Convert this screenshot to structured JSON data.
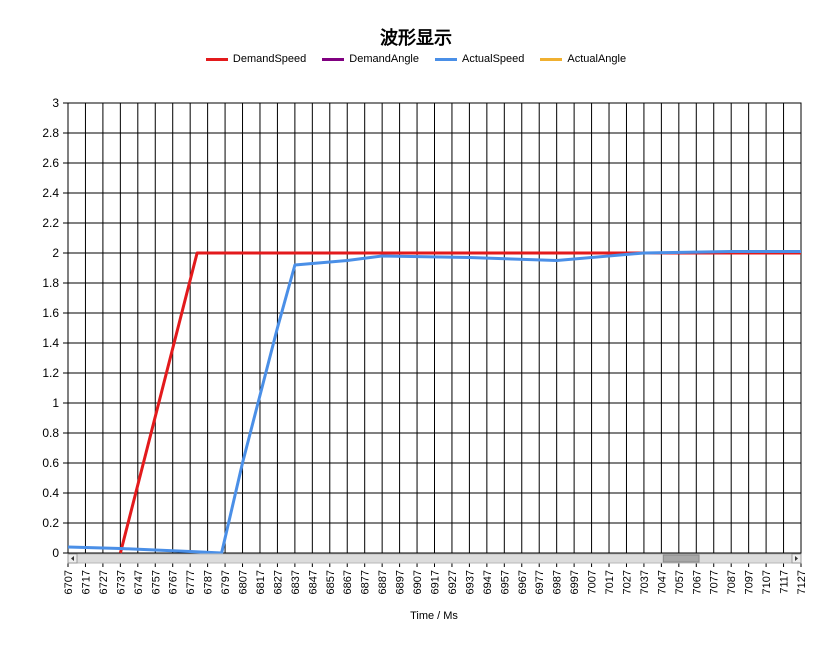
{
  "chart_data": {
    "type": "line",
    "title": "波形显示",
    "xlabel": "Time / Ms",
    "ylabel": "",
    "xlim": [
      6707,
      7127
    ],
    "ylim": [
      0,
      3
    ],
    "x_ticks": [
      6707,
      6717,
      6727,
      6737,
      6747,
      6757,
      6767,
      6777,
      6787,
      6797,
      6807,
      6817,
      6827,
      6837,
      6847,
      6857,
      6867,
      6877,
      6887,
      6897,
      6907,
      6917,
      6927,
      6937,
      6947,
      6957,
      6967,
      6977,
      6987,
      6997,
      7007,
      7017,
      7027,
      7037,
      7047,
      7057,
      7067,
      7077,
      7087,
      7097,
      7107,
      7117,
      7127
    ],
    "y_ticks": [
      "0",
      "0.2",
      "0.4",
      "0.6",
      "0.8",
      "1",
      "1.2",
      "1.4",
      "1.6",
      "1.8",
      "2",
      "2.2",
      "2.4",
      "2.6",
      "2.8",
      "3"
    ],
    "grid": true,
    "legend_position": "top",
    "series": [
      {
        "name": "DemandSpeed",
        "color": "#e31a1c",
        "x": [
          6737,
          6781,
          7127
        ],
        "y": [
          0,
          2.0,
          2.0
        ]
      },
      {
        "name": "DemandAngle",
        "color": "#800080",
        "x": [],
        "y": []
      },
      {
        "name": "ActualSpeed",
        "color": "#4a8fe7",
        "x": [
          6707,
          6737,
          6757,
          6777,
          6795,
          6807,
          6827,
          6837,
          6867,
          6887,
          6937,
          6987,
          7037,
          7087,
          7127
        ],
        "y": [
          0.04,
          0.03,
          0.02,
          0.01,
          0.0,
          0.6,
          1.5,
          1.92,
          1.95,
          1.98,
          1.97,
          1.95,
          2.0,
          2.01,
          2.01
        ]
      },
      {
        "name": "ActualAngle",
        "color": "#f0b030",
        "x": [],
        "y": []
      }
    ],
    "scrollbar": {
      "thumb_start": 0.82,
      "thumb_end": 0.87
    }
  }
}
